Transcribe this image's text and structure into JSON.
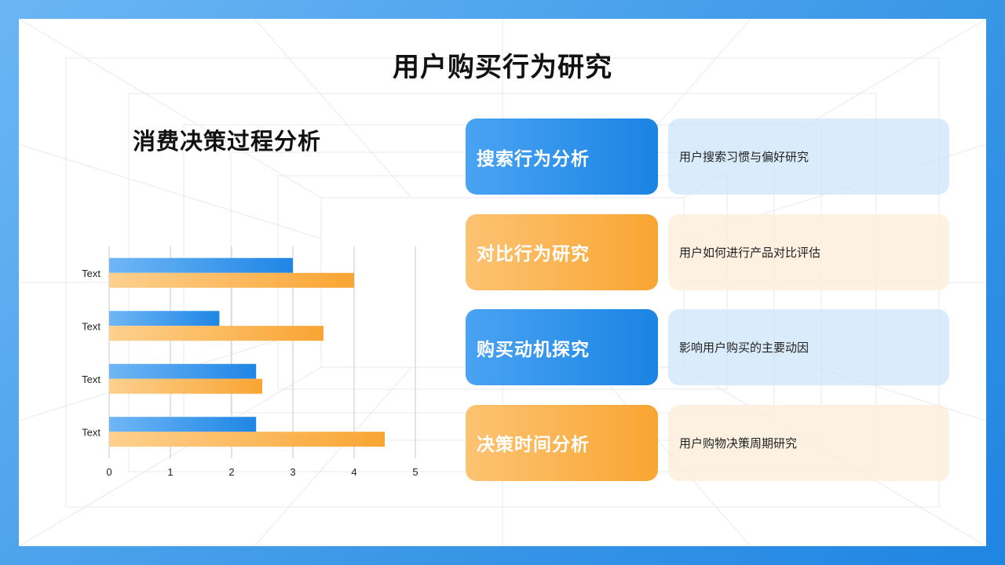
{
  "title": "用户购买行为研究",
  "subtitle": "消费决策过程分析",
  "colors": {
    "blue_start": "#6fb6f5",
    "blue_end": "#1f86e5",
    "orange_start": "#fdd08e",
    "orange_end": "#f9a532"
  },
  "chart_data": {
    "type": "bar",
    "orientation": "horizontal",
    "categories": [
      "Text",
      "Text",
      "Text",
      "Text"
    ],
    "series": [
      {
        "values": [
          3.0,
          1.8,
          2.4,
          2.4
        ],
        "color": "blue"
      },
      {
        "values": [
          4.0,
          3.5,
          2.5,
          4.5
        ],
        "color": "orange"
      }
    ],
    "xlim": [
      0,
      5
    ],
    "x_ticks": [
      "0",
      "1",
      "2",
      "3",
      "4",
      "5"
    ],
    "grid": true
  },
  "cards": [
    {
      "label": "搜索行为分析",
      "desc": "用户搜索习惯与偏好研究",
      "theme": "blue"
    },
    {
      "label": "对比行为研究",
      "desc": "用户如何进行产品对比评估",
      "theme": "orange"
    },
    {
      "label": "购买动机探究",
      "desc": "影响用户购买的主要动因",
      "theme": "blue"
    },
    {
      "label": "决策时间分析",
      "desc": "用户购物决策周期研究",
      "theme": "orange"
    }
  ]
}
